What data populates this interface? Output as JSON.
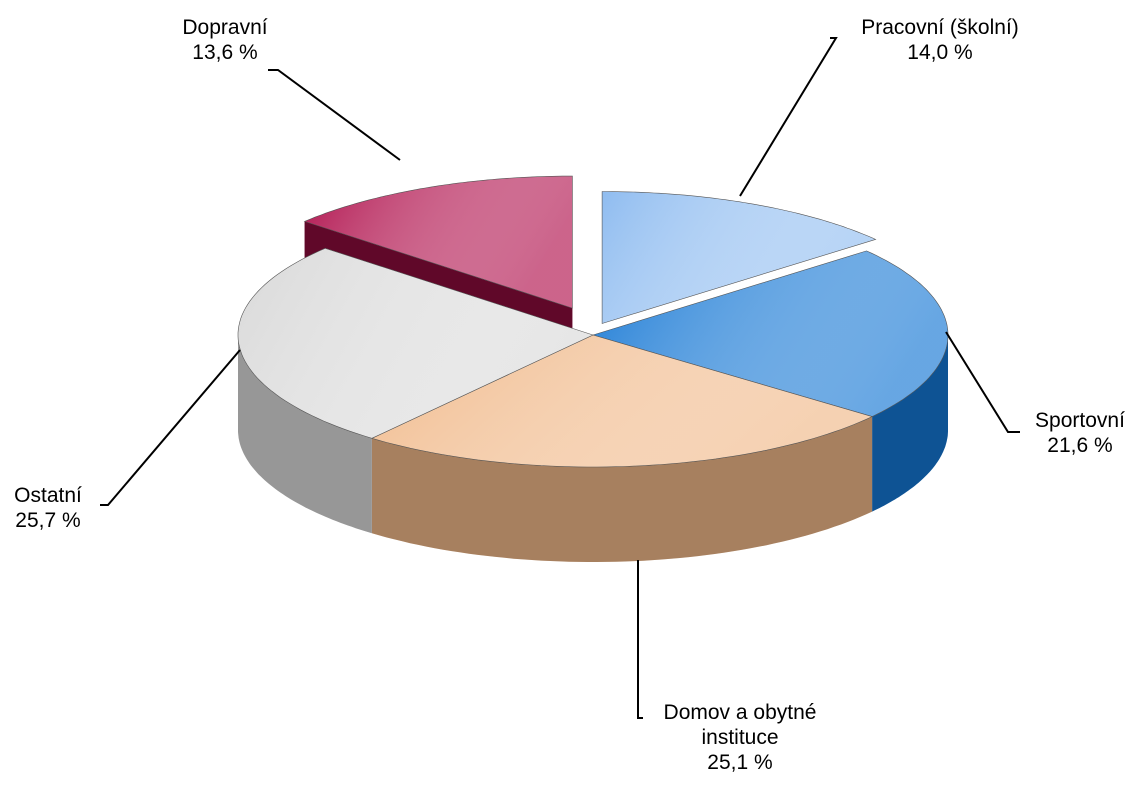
{
  "chart_data": {
    "type": "pie3d",
    "categories": [
      "Pracovní (školní)",
      "Sportovní",
      "Domov a obytné instituce",
      "Ostatní",
      "Dopravní"
    ],
    "values": [
      14.0,
      21.6,
      25.1,
      25.7,
      13.6
    ],
    "value_labels": [
      "14,0 %",
      "21,6 %",
      "25,1 %",
      "25,7 %",
      "13,6 %"
    ],
    "colors": [
      "#8fbcf0",
      "#1577d4",
      "#f0b888",
      "#d9d9d9",
      "#b0104c"
    ]
  }
}
